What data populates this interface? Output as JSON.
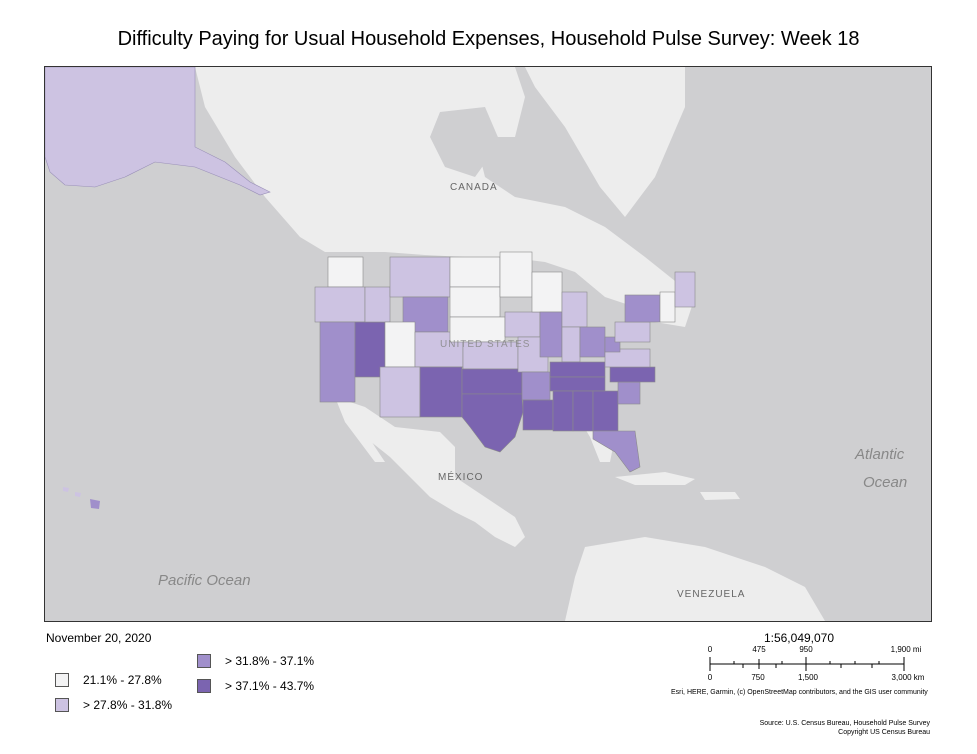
{
  "title": "Difficulty Paying for Usual Household Expenses, Household Pulse Survey: Week 18",
  "map": {
    "labels": {
      "canada": "CANADA",
      "united_states": "UNITED STATES",
      "mexico": "MÉXICO",
      "venezuela": "VENEZUELA",
      "atlantic_1": "Atlantic",
      "atlantic_2": "Ocean",
      "pacific": "Pacific Ocean"
    },
    "colors": {
      "ocean": "#cfcfd1",
      "land": "#ededed",
      "class_1": "#f3f3f4",
      "class_2": "#cdc3e2",
      "class_3": "#a08fcb",
      "class_4": "#7b64b0"
    }
  },
  "date": "November 20, 2020",
  "legend": [
    {
      "label": "21.1% - 27.8%",
      "color": "#f3f3f4"
    },
    {
      "label": "> 27.8% - 31.8%",
      "color": "#cdc3e2"
    },
    {
      "label": "> 31.8% - 37.1%",
      "color": "#a08fcb"
    },
    {
      "label": "> 37.1% - 43.7%",
      "color": "#7b64b0"
    }
  ],
  "scale": {
    "ratio": "1:56,049,070",
    "miles": [
      "0",
      "475",
      "950",
      "1,900 mi"
    ],
    "km": [
      "0",
      "750",
      "1,500",
      "3,000 km"
    ]
  },
  "credits": "Esri, HERE, Garmin, (c) OpenStreetMap contributors, and the GIS user community",
  "source_line_1": "Source: U.S. Census Bureau, Household Pulse Survey",
  "source_line_2": "Copyright US Census Bureau"
}
